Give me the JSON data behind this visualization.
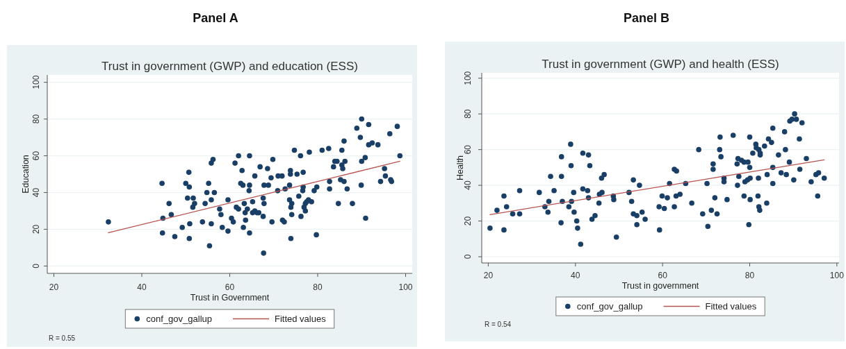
{
  "chart_data": [
    {
      "type": "scatter",
      "title": "Panel A",
      "subtitle": "Trust in government (GWP) and education (ESS)",
      "xlabel": "Trust in Government",
      "ylabel": "Education",
      "xlim": [
        18.5,
        101.5
      ],
      "xticks": [
        20,
        40,
        60,
        80,
        100
      ],
      "ylim": [
        -4,
        104
      ],
      "yticks": [
        0,
        20,
        40,
        60,
        80,
        100
      ],
      "grid": "y",
      "legend": "bottom",
      "annotations": [
        "R = 0.55"
      ],
      "series": [
        {
          "name": "conf_gov_gallup",
          "color": "#1a3f66",
          "marker": "circle",
          "x": [
            32.4,
            44.6,
            44.7,
            44.8,
            46.2,
            46.7,
            47.5,
            49.2,
            50.7,
            50.0,
            50.8,
            50.4,
            50.9,
            50.8,
            51.7,
            52.0,
            51.6,
            53.8,
            54.4,
            55.2,
            54.8,
            55.4,
            55.8,
            56.2,
            55.8,
            55.8,
            56.5,
            59.6,
            58.0,
            57.7,
            58.3,
            59.6,
            60.4,
            60.8,
            61.2,
            62.0,
            62.8,
            62.5,
            63.0,
            64.5,
            64.4,
            64.5,
            61.5,
            62.0,
            63.3,
            63.5,
            63.6,
            63.1,
            64.5,
            64.0,
            65.2,
            65.2,
            65.7,
            66.2,
            66.6,
            65.7,
            66.9,
            68.6,
            67.8,
            68.8,
            67.6,
            67.8,
            67.6,
            67.7,
            69.4,
            69.8,
            71.0,
            71.9,
            70.9,
            69.6,
            72.0,
            72.4,
            73.8,
            73.8,
            74.7,
            76.1,
            78.1,
            75.3,
            76.7,
            72.6,
            73.6,
            73.6,
            74.1,
            73.9,
            74.1,
            73.9,
            75.7,
            76.2,
            76.7,
            76.6,
            76.9,
            77.2,
            77.5,
            77.9,
            78.6,
            77.2,
            79.2,
            79.8,
            79.7,
            81.0,
            82.5,
            82.7,
            82.7,
            83.9,
            84.4,
            83.6,
            85.5,
            86.0,
            85.5,
            85.7,
            86.2,
            85.2,
            86.0,
            86.7,
            84.7,
            87.9,
            88.9,
            90.0,
            91.6,
            89.7,
            91.6,
            92.4,
            93.7,
            90.0,
            90.8,
            89.9,
            90.9,
            94.3,
            96.4,
            98.1,
            98.7,
            95.2,
            95.4,
            96.6,
            96.8
          ],
          "values": [
            24,
            45,
            18,
            26,
            34,
            28,
            16,
            21,
            51,
            45,
            43,
            37,
            23,
            15,
            37,
            34,
            32,
            24,
            34,
            45,
            40,
            11,
            56,
            58,
            36,
            23,
            40,
            36,
            28,
            31,
            21,
            19,
            26,
            24,
            56,
            60,
            52,
            45,
            44,
            44,
            41,
            60,
            32,
            31,
            34,
            29,
            25,
            21,
            18,
            31,
            35,
            29,
            30,
            29,
            29,
            49,
            54,
            53,
            44,
            44,
            37,
            34,
            27,
            7,
            48,
            58,
            49,
            49,
            41,
            24,
            25,
            24,
            52,
            50,
            63,
            60,
            62,
            50,
            51,
            42,
            44,
            36,
            34,
            32,
            28,
            15,
            38,
            27,
            43,
            41,
            32,
            34,
            35,
            36,
            35,
            30,
            41,
            43,
            17,
            63,
            64,
            46,
            42,
            57,
            57,
            54,
            63,
            68,
            55,
            53,
            57,
            47,
            46,
            42,
            34,
            34,
            75,
            80,
            77,
            70,
            66,
            67,
            66,
            57,
            59,
            44,
            26,
            46,
            72,
            76,
            60,
            53,
            49,
            47,
            46
          ]
        },
        {
          "name": "Fitted values",
          "type": "line",
          "color": "#b5534f",
          "x": [
            32.4,
            98.7
          ],
          "values": [
            18.1,
            57.0
          ]
        }
      ]
    },
    {
      "type": "scatter",
      "title": "Panel B",
      "subtitle": "Trust in government (GWP) and health (ESS)",
      "xlabel": "Trust in government",
      "ylabel": "Health",
      "xlim": [
        18.5,
        100.5
      ],
      "xticks": [
        20,
        40,
        60,
        80,
        100
      ],
      "ylim": [
        -3.5,
        103
      ],
      "yticks": [
        0,
        20,
        40,
        60,
        80,
        100
      ],
      "grid": "y",
      "legend": "bottom",
      "annotations": [
        "R = 0.54"
      ],
      "series": [
        {
          "name": "conf_gov_gallup",
          "color": "#1a3f66",
          "marker": "circle",
          "x": [
            20.4,
            22.0,
            23.6,
            23.6,
            24.2,
            25.6,
            27.2,
            27.2,
            31.7,
            33.0,
            33.7,
            33.9,
            34.3,
            35.1,
            36.8,
            36.8,
            37.0,
            36.7,
            38.9,
            39.0,
            38.5,
            39.1,
            39.6,
            39.7,
            40.3,
            40.5,
            41.2,
            41.7,
            43.0,
            43.3,
            41.7,
            42.8,
            43.0,
            43.8,
            44.5,
            45.4,
            45.5,
            46.1,
            46.0,
            46.6,
            48.7,
            48.8,
            49.4,
            52.3,
            52.9,
            53.3,
            54.7,
            53.3,
            54.1,
            55.3,
            54.1,
            56.0,
            59.2,
            59.3,
            60.4,
            59.9,
            61.1,
            61.6,
            62.7,
            62.7,
            63.2,
            63.1,
            64.0,
            65.3,
            66.7,
            68.3,
            69.2,
            70.2,
            70.4,
            71.2,
            72.0,
            71.6,
            71.6,
            72.5,
            73.1,
            73.2,
            73.4,
            74.1,
            74.1,
            74.8,
            76.2,
            77.1,
            77.3,
            77.2,
            77.5,
            78.1,
            78.7,
            79.6,
            80.0,
            78.7,
            78.9,
            79.5,
            80.1,
            80.1,
            80.0,
            79.8,
            80.7,
            81.4,
            81.5,
            82.1,
            82.4,
            82.4,
            82.0,
            81.9,
            82.1,
            82.3,
            83.4,
            84.3,
            85.0,
            85.3,
            85.3,
            84.0,
            85.3,
            83.9,
            86.6,
            87.2,
            88.4,
            88.0,
            88.2,
            89.1,
            89.2,
            89.7,
            90.3,
            90.7,
            92.0,
            91.4,
            90.1,
            91.5,
            93.0,
            94.1,
            95.2,
            95.8,
            95.6,
            97.1
          ],
          "values": [
            16,
            26,
            34,
            15,
            28,
            24,
            24,
            37,
            36,
            28,
            25,
            31,
            45,
            37,
            56,
            45,
            31,
            19,
            63,
            51,
            28,
            31,
            36,
            25,
            20,
            16,
            7,
            58,
            57,
            51,
            38,
            37,
            33,
            21,
            23,
            30,
            35,
            36,
            44,
            46,
            34,
            32,
            11,
            36,
            31,
            43,
            40,
            24,
            23,
            25,
            18,
            21,
            28,
            15,
            27,
            34,
            33,
            41,
            28,
            49,
            48,
            34,
            35,
            41,
            30,
            60,
            24,
            41,
            17,
            26,
            33,
            52,
            49,
            24,
            60,
            67,
            56,
            44,
            42,
            32,
            68,
            52,
            55,
            40,
            45,
            54,
            53,
            53,
            50,
            34,
            42,
            43,
            44,
            32,
            67,
            18,
            58,
            63,
            61,
            60,
            58,
            57,
            44,
            34,
            28,
            26,
            62,
            66,
            64,
            72,
            50,
            46,
            41,
            30,
            57,
            47,
            46,
            70,
            60,
            53,
            76,
            77,
            80,
            77,
            75,
            66,
            43,
            49,
            55,
            42,
            46,
            47,
            34,
            44
          ]
        },
        {
          "name": "Fitted values",
          "type": "line",
          "color": "#b5534f",
          "x": [
            20.4,
            97.1
          ],
          "values": [
            23.6,
            54.3
          ]
        }
      ]
    }
  ]
}
